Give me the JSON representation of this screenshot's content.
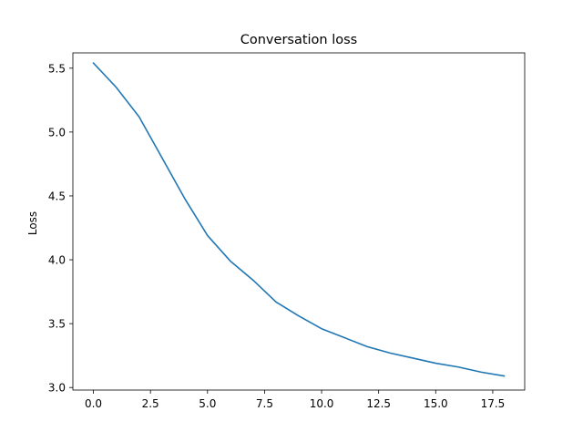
{
  "chart_data": {
    "type": "line",
    "title": "Conversation loss",
    "xlabel": "",
    "ylabel": "Loss",
    "xlim": [
      -0.9,
      18.9
    ],
    "ylim": [
      2.98,
      5.62
    ],
    "grid": false,
    "x_ticks": [
      0.0,
      2.5,
      5.0,
      7.5,
      10.0,
      12.5,
      15.0,
      17.5
    ],
    "x_tick_labels": [
      "0.0",
      "2.5",
      "5.0",
      "7.5",
      "10.0",
      "12.5",
      "15.0",
      "17.5"
    ],
    "y_ticks": [
      3.0,
      3.5,
      4.0,
      4.5,
      5.0,
      5.5
    ],
    "y_tick_labels": [
      "3.0",
      "3.5",
      "4.0",
      "4.5",
      "5.0",
      "5.5"
    ],
    "series": [
      {
        "color": "#1f77b4",
        "x": [
          0,
          1,
          2,
          3,
          4,
          5,
          6,
          7,
          8,
          9,
          10,
          11,
          12,
          13,
          14,
          15,
          16,
          17,
          18
        ],
        "y": [
          5.54,
          5.35,
          5.12,
          4.8,
          4.48,
          4.19,
          3.99,
          3.84,
          3.67,
          3.56,
          3.46,
          3.39,
          3.32,
          3.27,
          3.23,
          3.19,
          3.16,
          3.12,
          3.09
        ]
      }
    ]
  }
}
